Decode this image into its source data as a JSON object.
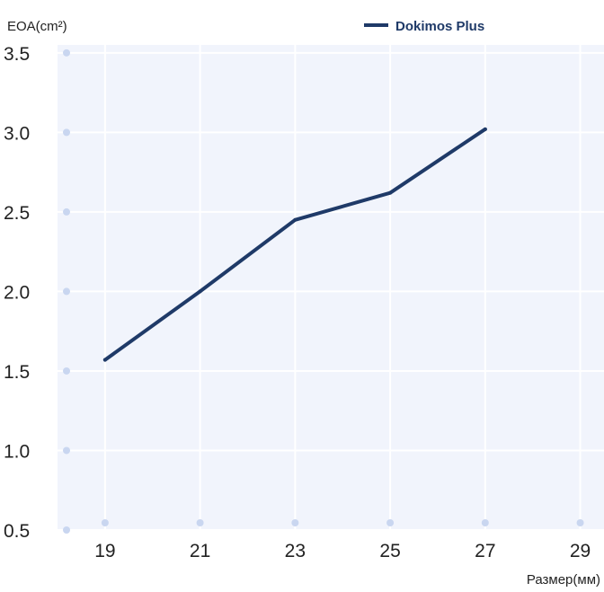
{
  "chart_data": {
    "type": "line",
    "ylabel": "EOA(cm²)",
    "xlabel": "Размер(мм)",
    "x_ticks": [
      "19",
      "21",
      "23",
      "25",
      "27",
      "29"
    ],
    "y_ticks": [
      "0.5",
      "1.0",
      "1.5",
      "2.0",
      "2.5",
      "3.0",
      "3.5"
    ],
    "xlim": [
      18,
      29.5
    ],
    "ylim": [
      0.5,
      3.55
    ],
    "grid": true,
    "legend_position": "top-right",
    "series": [
      {
        "name": "Dokimos Plus",
        "color": "#1f3a68",
        "x": [
          19,
          21,
          23,
          25,
          27
        ],
        "y": [
          1.57,
          2.0,
          2.45,
          2.62,
          3.02
        ]
      }
    ],
    "colors": {
      "plot_background": "#f1f4fc",
      "grid": "#ffffff",
      "tick_dot": "#c9d6f0"
    }
  }
}
